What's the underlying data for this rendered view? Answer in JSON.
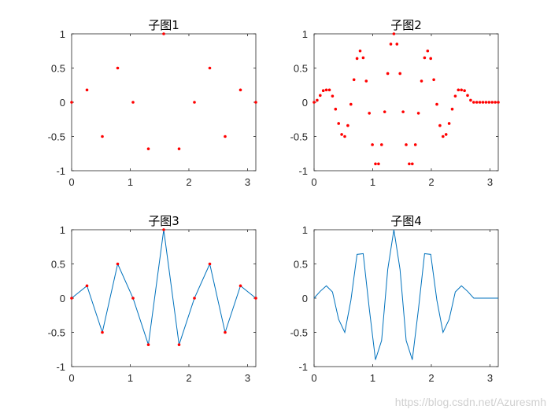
{
  "watermark": "https://blog.csdn.net/Azuresmh",
  "colors": {
    "marker": "#ff0000",
    "line": "#0072bd",
    "axis": "#262626"
  },
  "chart_data": [
    {
      "type": "scatter",
      "title": "子图1",
      "xlim": [
        0,
        3.14159
      ],
      "ylim": [
        -1,
        1
      ],
      "xticks": [
        0,
        1,
        2,
        3
      ],
      "yticks": [
        -1,
        -0.5,
        0,
        0.5,
        1
      ],
      "series": [
        {
          "marker": true,
          "line": false,
          "x": [
            0,
            0.2618,
            0.5236,
            0.7854,
            1.0472,
            1.309,
            1.5708,
            1.8326,
            2.0944,
            2.3562,
            2.618,
            2.8798,
            3.1416
          ],
          "y": [
            0,
            0.18,
            -0.5,
            0.5,
            0,
            -0.68,
            1,
            -0.68,
            0,
            0.5,
            -0.5,
            0.18,
            0
          ]
        }
      ]
    },
    {
      "type": "scatter",
      "title": "子图2",
      "xlim": [
        0,
        3.14159
      ],
      "ylim": [
        -1,
        1
      ],
      "xticks": [
        0,
        1,
        2,
        3
      ],
      "yticks": [
        -1,
        -0.5,
        0,
        0.5,
        1
      ],
      "series": [
        {
          "marker": true,
          "line": false,
          "x": [
            0,
            0.0524,
            0.1047,
            0.1571,
            0.2094,
            0.2618,
            0.3142,
            0.3665,
            0.4189,
            0.4712,
            0.5236,
            0.576,
            0.6283,
            0.6807,
            0.733,
            0.7854,
            0.8378,
            0.8901,
            0.9425,
            0.9948,
            1.0472,
            1.0996,
            1.1519,
            1.2043,
            1.2566,
            1.309,
            1.3614,
            1.4137,
            1.4661,
            1.5184,
            1.5708,
            1.6232,
            1.6755,
            1.7279,
            1.7802,
            1.8326,
            1.885,
            1.9373,
            1.9897,
            2.042,
            2.0944,
            2.1468,
            2.1991,
            2.2515,
            2.3038,
            2.3562,
            2.4086,
            2.4609,
            2.5133,
            2.5656,
            2.618,
            2.6704,
            2.7227,
            2.7751,
            2.8274,
            2.8798,
            2.9322,
            2.9845,
            3.0369,
            3.0892,
            3.1416
          ],
          "y": [
            0,
            0.03,
            0.1,
            0.17,
            0.18,
            0.18,
            0.09,
            -0.1,
            -0.31,
            -0.47,
            -0.5,
            -0.34,
            -0.03,
            0.33,
            0.64,
            0.75,
            0.65,
            0.31,
            -0.16,
            -0.62,
            -0.9,
            -0.9,
            -0.62,
            -0.14,
            0.42,
            0.85,
            1,
            0.85,
            0.42,
            -0.14,
            -0.62,
            -0.9,
            -0.9,
            -0.62,
            -0.16,
            0.31,
            0.65,
            0.75,
            0.64,
            0.33,
            -0.03,
            -0.34,
            -0.5,
            -0.47,
            -0.31,
            -0.1,
            0.09,
            0.18,
            0.18,
            0.17,
            0.1,
            0.03,
            0,
            0,
            0,
            0,
            0,
            0,
            0,
            0,
            0
          ]
        }
      ]
    },
    {
      "type": "line",
      "title": "子图3",
      "xlim": [
        0,
        3.14159
      ],
      "ylim": [
        -1,
        1
      ],
      "xticks": [
        0,
        1,
        2,
        3
      ],
      "yticks": [
        -1,
        -0.5,
        0,
        0.5,
        1
      ],
      "series": [
        {
          "marker": true,
          "line": true,
          "x": [
            0,
            0.2618,
            0.5236,
            0.7854,
            1.0472,
            1.309,
            1.5708,
            1.8326,
            2.0944,
            2.3562,
            2.618,
            2.8798,
            3.1416
          ],
          "y": [
            0,
            0.18,
            -0.5,
            0.5,
            0,
            -0.68,
            1,
            -0.68,
            0,
            0.5,
            -0.5,
            0.18,
            0
          ]
        }
      ]
    },
    {
      "type": "line",
      "title": "子图4",
      "xlim": [
        0,
        3.14159
      ],
      "ylim": [
        -1,
        1
      ],
      "xticks": [
        0,
        1,
        2,
        3
      ],
      "yticks": [
        -1,
        -0.5,
        0,
        0.5,
        1
      ],
      "series": [
        {
          "marker": false,
          "line": true,
          "x": [
            0,
            0.1047,
            0.2094,
            0.3142,
            0.4189,
            0.5236,
            0.6283,
            0.733,
            0.8378,
            0.9425,
            1.0472,
            1.1519,
            1.2566,
            1.3614,
            1.4661,
            1.5708,
            1.6755,
            1.7802,
            1.885,
            1.9897,
            2.0944,
            2.1991,
            2.3038,
            2.4086,
            2.5133,
            2.618,
            2.7227,
            2.8274,
            2.9322,
            3.0369,
            3.1416
          ],
          "y": [
            0,
            0.1,
            0.18,
            0.09,
            -0.31,
            -0.5,
            -0.03,
            0.64,
            0.65,
            -0.16,
            -0.9,
            -0.62,
            0.42,
            1,
            0.42,
            -0.62,
            -0.9,
            -0.16,
            0.65,
            0.64,
            -0.03,
            -0.5,
            -0.31,
            0.09,
            0.18,
            0.1,
            0,
            0,
            0,
            0,
            0
          ]
        }
      ]
    }
  ]
}
